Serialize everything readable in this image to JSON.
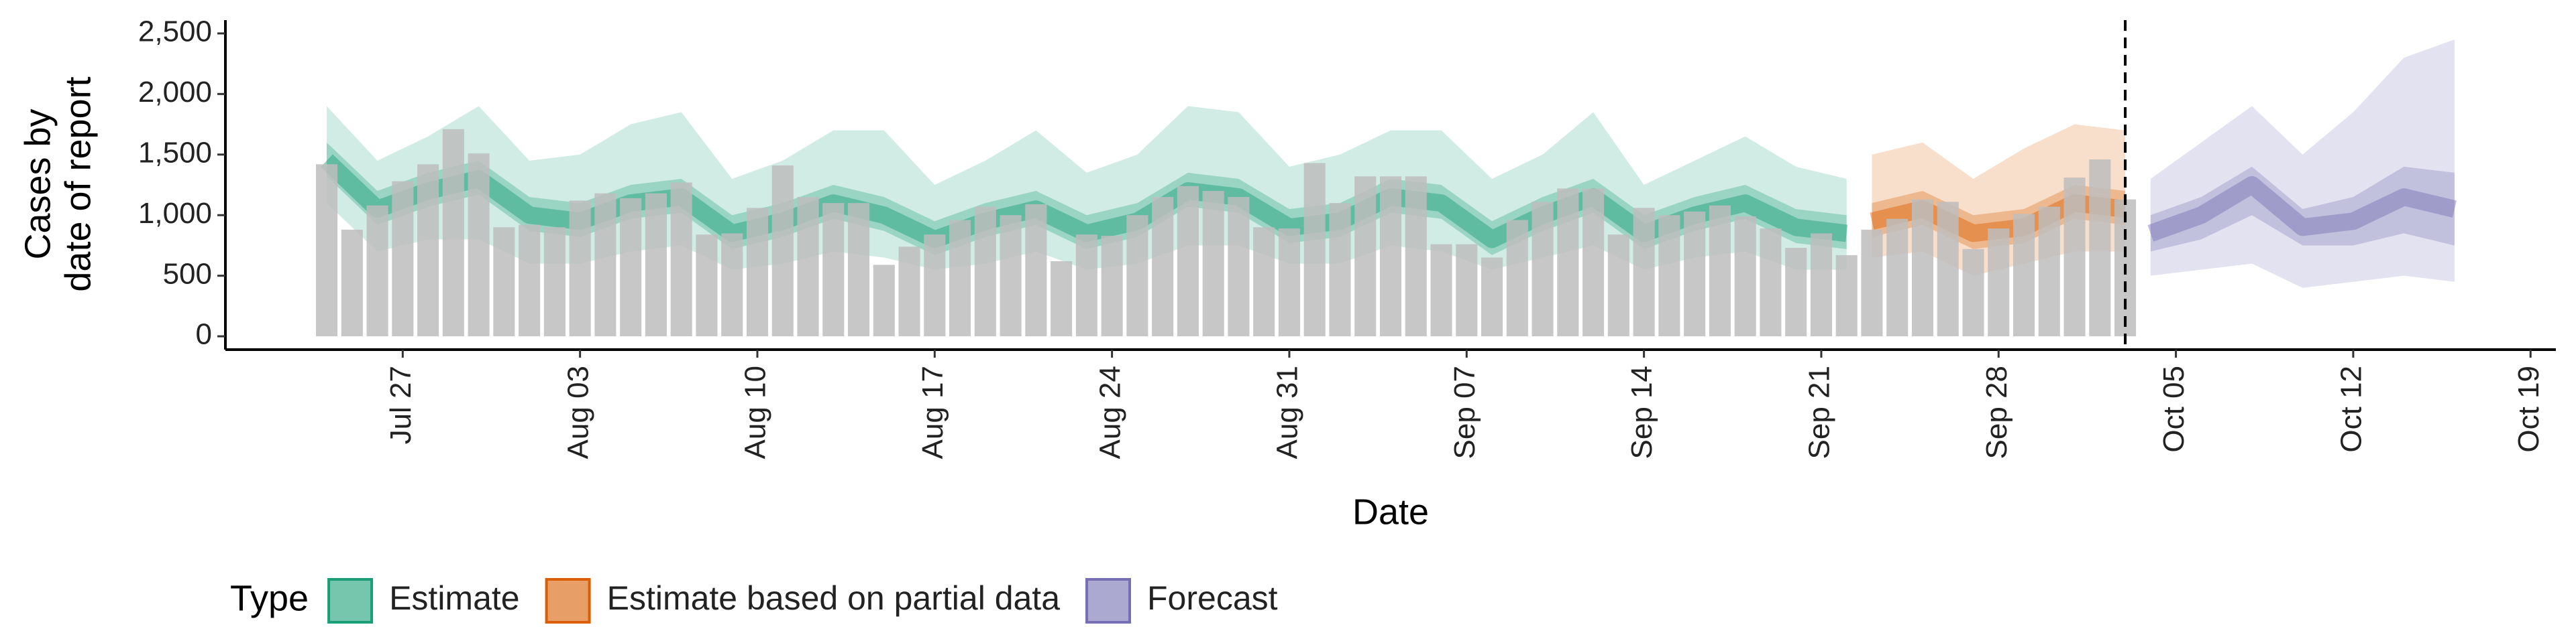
{
  "chart_data": {
    "type": "bar",
    "ylabel": [
      "Cases by",
      "date of report"
    ],
    "xlabel": "Date",
    "legend_title": "Type",
    "legend": "bottom",
    "xlim": [
      "Jul 20",
      "Oct 20"
    ],
    "xticks": [
      "Jul 27",
      "Aug 03",
      "Aug 10",
      "Aug 17",
      "Aug 24",
      "Aug 31",
      "Sep 07",
      "Sep 14",
      "Sep 21",
      "Sep 28",
      "Oct 05",
      "Oct 12",
      "Oct 19"
    ],
    "ylim": [
      -110,
      2610
    ],
    "yticks": [
      0,
      500,
      {
        "value": 1000,
        "label": "1,000"
      },
      {
        "value": 1500,
        "label": "1,500"
      },
      {
        "value": 2000,
        "label": "2,000"
      },
      {
        "value": 2500,
        "label": "2,500"
      }
    ],
    "forecast_start": "Oct 3",
    "bars": {
      "color": "#bdbdbd",
      "x": [
        "Jul 24",
        "Jul 25",
        "Jul 26",
        "Jul 27",
        "Jul 28",
        "Jul 29",
        "Jul 30",
        "Jul 31",
        "Aug 1",
        "Aug 2",
        "Aug 3",
        "Aug 4",
        "Aug 5",
        "Aug 6",
        "Aug 7",
        "Aug 8",
        "Aug 9",
        "Aug 10",
        "Aug 11",
        "Aug 12",
        "Aug 13",
        "Aug 14",
        "Aug 15",
        "Aug 16",
        "Aug 17",
        "Aug 18",
        "Aug 19",
        "Aug 20",
        "Aug 21",
        "Aug 22",
        "Aug 23",
        "Aug 24",
        "Aug 25",
        "Aug 26",
        "Aug 27",
        "Aug 28",
        "Aug 29",
        "Aug 30",
        "Aug 31",
        "Sep 1",
        "Sep 2",
        "Sep 3",
        "Sep 4",
        "Sep 5",
        "Sep 6",
        "Sep 7",
        "Sep 8",
        "Sep 9",
        "Sep 10",
        "Sep 11",
        "Sep 12",
        "Sep 13",
        "Sep 14",
        "Sep 15",
        "Sep 16",
        "Sep 17",
        "Sep 18",
        "Sep 19",
        "Sep 20",
        "Sep 21",
        "Sep 22",
        "Sep 23",
        "Sep 24",
        "Sep 25",
        "Sep 26",
        "Sep 27",
        "Sep 28",
        "Sep 29",
        "Sep 30",
        "Oct 1",
        "Oct 2",
        "Oct 3"
      ],
      "values": [
        1420,
        880,
        1080,
        1280,
        1420,
        1710,
        1510,
        900,
        920,
        900,
        1120,
        1180,
        1140,
        1180,
        1270,
        840,
        850,
        1060,
        1410,
        1150,
        1100,
        1100,
        590,
        740,
        840,
        960,
        1070,
        1000,
        1090,
        620,
        840,
        830,
        1000,
        1150,
        1240,
        1200,
        1150,
        900,
        890,
        1430,
        1100,
        1320,
        1320,
        1320,
        760,
        760,
        650,
        960,
        1110,
        1220,
        1220,
        840,
        1060,
        1000,
        1030,
        1080,
        990,
        890,
        730,
        850,
        670,
        880,
        970,
        1130,
        1110,
        720,
        890,
        1010,
        1070,
        1310,
        1460,
        1130
      ]
    },
    "bands": [
      {
        "name": "Estimate",
        "color": "#1b9e77",
        "x": [
          "Jul 24",
          "Jul 26",
          "Jul 28",
          "Jul 30",
          "Aug 1",
          "Aug 3",
          "Aug 5",
          "Aug 7",
          "Aug 9",
          "Aug 11",
          "Aug 13",
          "Aug 15",
          "Aug 17",
          "Aug 19",
          "Aug 21",
          "Aug 23",
          "Aug 25",
          "Aug 27",
          "Aug 29",
          "Aug 31",
          "Sep 2",
          "Sep 4",
          "Sep 6",
          "Sep 8",
          "Sep 10",
          "Sep 12",
          "Sep 14",
          "Sep 16",
          "Sep 18",
          "Sep 20",
          "Sep 22"
        ],
        "median": [
          1450,
          1050,
          1200,
          1300,
          1000,
          950,
          1100,
          1150,
          850,
          950,
          1100,
          1000,
          800,
          950,
          1050,
          850,
          950,
          1200,
          1150,
          900,
          950,
          1150,
          1100,
          800,
          1000,
          1150,
          850,
          1000,
          1100,
          900,
          850
        ],
        "upper90": [
          1900,
          1450,
          1650,
          1900,
          1450,
          1500,
          1750,
          1850,
          1300,
          1450,
          1700,
          1700,
          1250,
          1450,
          1700,
          1350,
          1500,
          1900,
          1850,
          1400,
          1500,
          1700,
          1700,
          1300,
          1500,
          1850,
          1250,
          1450,
          1650,
          1400,
          1300
        ],
        "lower90": [
          1100,
          700,
          800,
          800,
          600,
          600,
          700,
          750,
          550,
          600,
          700,
          650,
          550,
          600,
          700,
          550,
          600,
          750,
          750,
          600,
          600,
          750,
          700,
          550,
          650,
          750,
          550,
          650,
          700,
          550,
          550
        ],
        "upper50": [
          1600,
          1200,
          1350,
          1450,
          1150,
          1100,
          1250,
          1300,
          1000,
          1100,
          1250,
          1150,
          950,
          1100,
          1200,
          1000,
          1100,
          1350,
          1300,
          1050,
          1100,
          1300,
          1250,
          950,
          1150,
          1300,
          1000,
          1150,
          1250,
          1050,
          1000
        ],
        "lower50": [
          1320,
          920,
          1070,
          1170,
          870,
          820,
          970,
          1020,
          720,
          820,
          970,
          870,
          670,
          820,
          920,
          720,
          820,
          1070,
          1020,
          770,
          820,
          1020,
          970,
          670,
          870,
          1020,
          720,
          870,
          970,
          770,
          720
        ]
      },
      {
        "name": "Estimate based on partial data",
        "color": "#d95f02",
        "x": [
          "Sep 23",
          "Sep 25",
          "Sep 27",
          "Sep 29",
          "Oct 1",
          "Oct 3"
        ],
        "median": [
          950,
          1050,
          850,
          900,
          1100,
          1050
        ],
        "upper90": [
          1500,
          1600,
          1300,
          1550,
          1750,
          1700
        ],
        "lower90": [
          650,
          700,
          500,
          600,
          700,
          700
        ],
        "upper50": [
          1100,
          1200,
          1000,
          1050,
          1250,
          1200
        ],
        "lower50": [
          820,
          920,
          720,
          770,
          970,
          920
        ]
      },
      {
        "name": "Forecast",
        "color": "#7570b3",
        "x": [
          "Oct 4",
          "Oct 6",
          "Oct 8",
          "Oct 10",
          "Oct 12",
          "Oct 14",
          "Oct 16"
        ],
        "median": [
          850,
          1000,
          1250,
          900,
          950,
          1150,
          1050
        ],
        "upper90": [
          1300,
          1600,
          1900,
          1500,
          1850,
          2300,
          2450
        ],
        "lower90": [
          500,
          550,
          600,
          400,
          450,
          500,
          450
        ],
        "upper50": [
          1000,
          1150,
          1400,
          1050,
          1150,
          1400,
          1350
        ],
        "lower50": [
          700,
          800,
          1000,
          750,
          750,
          850,
          750
        ]
      }
    ]
  }
}
